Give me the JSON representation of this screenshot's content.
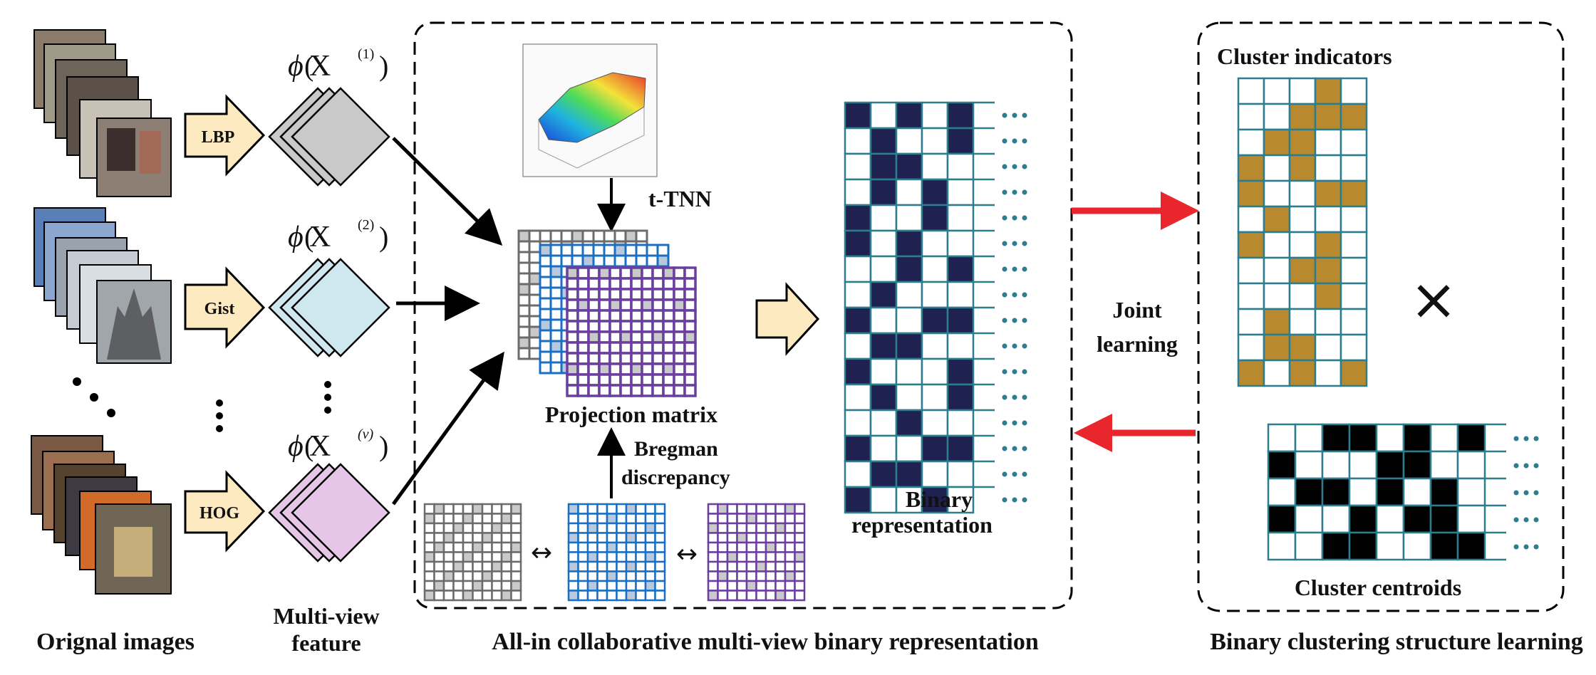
{
  "features": {
    "labels": [
      "LBP",
      "Gist",
      "HOG"
    ],
    "phi": "ϕ",
    "X": "X",
    "sup": [
      "(1)",
      "(2)",
      "(v)"
    ]
  },
  "middle": {
    "t_tnn": "t-TNN",
    "projection": "Projection matrix",
    "bregman1": "Bregman",
    "bregman2": "discrepancy",
    "binary1": "Binary",
    "binary2": "representation",
    "double_arrow": "↔"
  },
  "right": {
    "cluster_indicators": "Cluster indicators",
    "cluster_centroids": "Cluster centroids",
    "joint1": "Joint",
    "joint2": "learning",
    "times": "×"
  },
  "captions": {
    "original": "Orignal images",
    "multiview1": "Multi-view",
    "multiview2": "feature",
    "allin": "All-in collaborative multi-view binary representation",
    "binary_clustering": "Binary clustering structure learning"
  },
  "colors": {
    "navy": "#1f2150",
    "teal": "#2e7d8c",
    "gold": "#b8892e",
    "red": "#e8262c",
    "grey_grid": "#6b6b6b",
    "blue_grid": "#1a6fc2",
    "purple_grid": "#6a3fa0",
    "arrow_fill": "#fdeac0"
  }
}
